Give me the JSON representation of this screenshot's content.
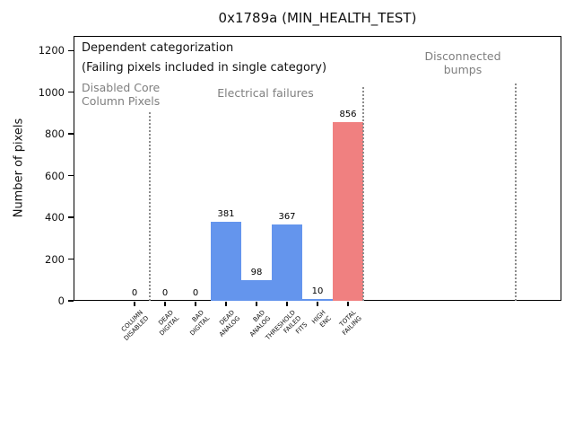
{
  "figure_title": "0x1789a (MIN_HEALTH_TEST)",
  "chart_data": {
    "type": "bar",
    "title": "0x1789a (MIN_HEALTH_TEST)",
    "xlabel": "",
    "ylabel": "Number of pixels",
    "ylim": [
      0,
      1270
    ],
    "yticks": [
      0,
      200,
      400,
      600,
      800,
      1000,
      1200
    ],
    "xlim": [
      -2,
      14
    ],
    "grid": false,
    "legend": "none",
    "categories": [
      "COLUMN\nDISABLED",
      "DEAD\nDIGITAL",
      "BAD\nDIGITAL",
      "DEAD\nANALOG",
      "BAD\nANALOG",
      "THRESHOLD\nFAILED\nFITS",
      "HIGH\nENC",
      "TOTAL\nFAILING"
    ],
    "values": [
      0,
      0,
      0,
      381,
      98,
      367,
      10,
      856
    ],
    "bar_value_labels": [
      "0",
      "0",
      "0",
      "381",
      "98",
      "367",
      "10",
      "856"
    ],
    "bar_colors": [
      "#6495ed",
      "#6495ed",
      "#6495ed",
      "#6495ed",
      "#6495ed",
      "#6495ed",
      "#6495ed",
      "#f08080"
    ],
    "separators_x": [
      0.5,
      7.5,
      12.5
    ],
    "annotations": {
      "dependent": "Dependent categorization",
      "failing_note": "(Failing pixels included in single category)",
      "disabled_core": "Disabled Core\nColumn Pixels",
      "electrical": "Electrical failures",
      "disconnected": "Disconnected\nbumps"
    }
  },
  "colors": {
    "bar_blue": "#6495ed",
    "bar_red": "#f08080",
    "annotation_gray": "#7f7f7f",
    "separator_gray": "#8c8c8c"
  }
}
